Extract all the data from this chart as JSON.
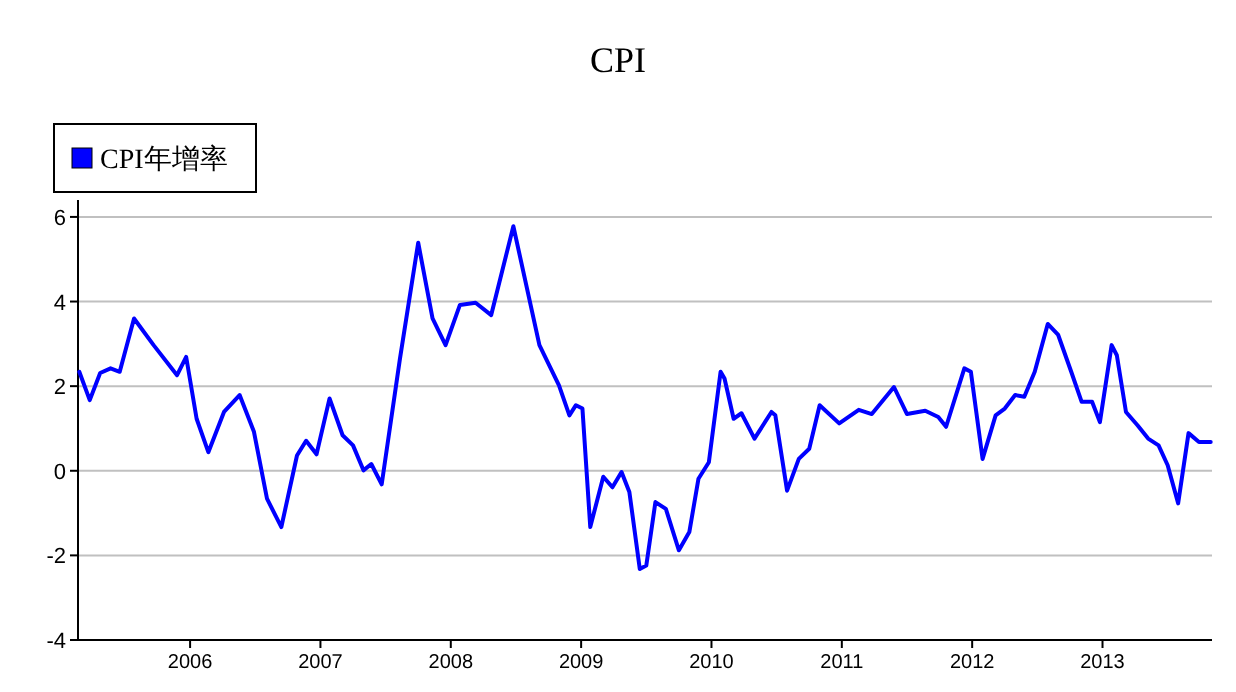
{
  "chart_data": {
    "type": "line",
    "title": "CPI",
    "x": [
      2005.15,
      2005.23,
      2005.31,
      2005.39,
      2005.46,
      2005.57,
      2005.72,
      2005.9,
      2005.97,
      2006.05,
      2006.14,
      2006.26,
      2006.38,
      2006.49,
      2006.59,
      2006.7,
      2006.82,
      2006.89,
      2006.97,
      2007.07,
      2007.17,
      2007.25,
      2007.33,
      2007.39,
      2007.47,
      2007.61,
      2007.75,
      2007.86,
      2007.96,
      2008.07,
      2008.19,
      2008.31,
      2008.48,
      2008.68,
      2008.83,
      2008.91,
      2008.96,
      2009.01,
      2009.07,
      2009.17,
      2009.24,
      2009.31,
      2009.37,
      2009.45,
      2009.5,
      2009.57,
      2009.65,
      2009.75,
      2009.83,
      2009.9,
      2009.98,
      2010.07,
      2010.1,
      2010.17,
      2010.23,
      2010.33,
      2010.46,
      2010.49,
      2010.58,
      2010.67,
      2010.75,
      2010.83,
      2010.98,
      2011.13,
      2011.23,
      2011.4,
      2011.5,
      2011.64,
      2011.74,
      2011.8,
      2011.94,
      2011.99,
      2012.08,
      2012.18,
      2012.25,
      2012.33,
      2012.4,
      2012.48,
      2012.58,
      2012.66,
      2012.76,
      2012.84,
      2012.92,
      2012.98,
      2013.07,
      2013.11,
      2013.18,
      2013.27,
      2013.35,
      2013.43,
      2013.5,
      2013.58,
      2013.66,
      2013.74,
      2013.83
    ],
    "series": [
      {
        "name": "CPI年增率",
        "color": "#0000ff",
        "values": [
          2.34,
          1.67,
          2.31,
          2.42,
          2.34,
          3.6,
          2.97,
          2.26,
          2.69,
          1.23,
          0.44,
          1.39,
          1.79,
          0.92,
          -0.66,
          -1.33,
          0.36,
          0.71,
          0.39,
          1.71,
          0.84,
          0.6,
          0.01,
          0.16,
          -0.32,
          2.65,
          5.39,
          3.6,
          2.97,
          3.92,
          3.97,
          3.68,
          5.78,
          2.97,
          2.02,
          1.31,
          1.55,
          1.47,
          -1.33,
          -0.14,
          -0.39,
          -0.03,
          -0.5,
          -2.32,
          -2.24,
          -0.74,
          -0.9,
          -1.88,
          -1.45,
          -0.19,
          0.2,
          2.34,
          2.18,
          1.23,
          1.36,
          0.76,
          1.39,
          1.31,
          -0.47,
          0.28,
          0.52,
          1.55,
          1.12,
          1.44,
          1.34,
          1.98,
          1.34,
          1.42,
          1.27,
          1.04,
          2.42,
          2.34,
          0.28,
          1.31,
          1.47,
          1.79,
          1.75,
          2.34,
          3.47,
          3.21,
          2.34,
          1.63,
          1.63,
          1.15,
          2.97,
          2.73,
          1.39,
          1.07,
          0.76,
          0.6,
          0.13,
          -0.77,
          0.89,
          0.68,
          0.68
        ]
      }
    ],
    "xlim": [
      2005.14,
      2013.84
    ],
    "xticks": [
      2006,
      2007,
      2008,
      2009,
      2010,
      2011,
      2012,
      2013
    ],
    "ylim": [
      -4,
      6.4
    ],
    "yticks": [
      -4,
      -2,
      0,
      2,
      4,
      6
    ],
    "grid": "y",
    "legend": "top left",
    "line_style": "solid"
  }
}
